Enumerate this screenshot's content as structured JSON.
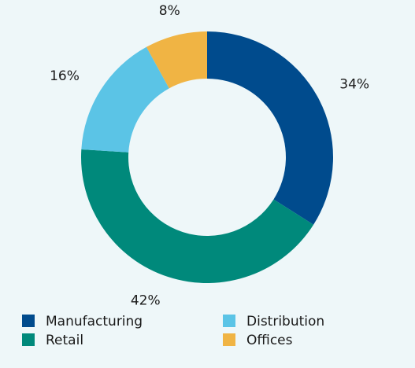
{
  "chart_data": {
    "type": "donut",
    "categories": [
      "Manufacturing",
      "Retail",
      "Distribution",
      "Offices"
    ],
    "values": [
      34,
      42,
      16,
      8
    ],
    "value_labels": [
      "34%",
      "42%",
      "16%",
      "8%"
    ],
    "colors": [
      "#004b8d",
      "#00897b",
      "#5bc4e6",
      "#f0b444"
    ],
    "legend": "bottom"
  }
}
